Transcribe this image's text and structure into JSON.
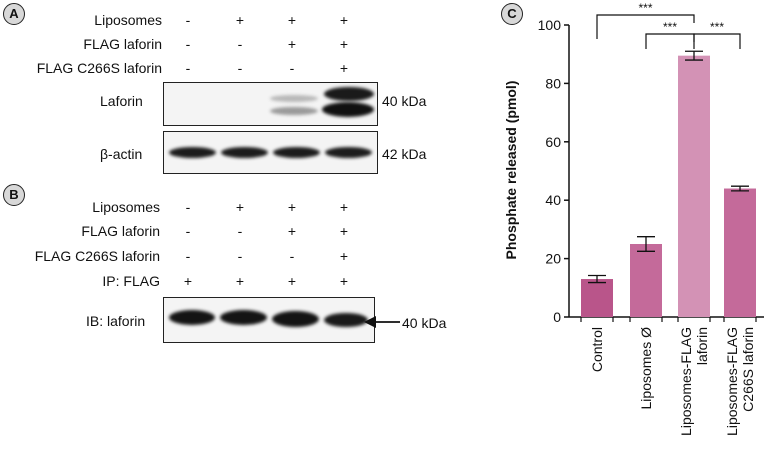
{
  "panel_a": {
    "letter": "A",
    "rows": [
      {
        "label": "Liposomes",
        "signs": [
          "-",
          "+",
          "+",
          "+"
        ]
      },
      {
        "label": "FLAG laforin",
        "signs": [
          "-",
          "-",
          "+",
          "+"
        ]
      },
      {
        "label": "FLAG C266S laforin",
        "signs": [
          "-",
          "-",
          "-",
          "+"
        ]
      }
    ],
    "blots": [
      {
        "label": "Laforin",
        "marker": "40 kDa"
      },
      {
        "label": "β-actin",
        "marker": "42 kDa"
      }
    ]
  },
  "panel_b": {
    "letter": "B",
    "rows": [
      {
        "label": "Liposomes",
        "signs": [
          "-",
          "+",
          "+",
          "+"
        ]
      },
      {
        "label": "FLAG laforin",
        "signs": [
          "-",
          "-",
          "+",
          "+"
        ]
      },
      {
        "label": "FLAG C266S laforin",
        "signs": [
          "-",
          "-",
          "-",
          "+"
        ]
      },
      {
        "label": "IP: FLAG",
        "signs": [
          "+",
          "+",
          "+",
          "+"
        ]
      }
    ],
    "blots": [
      {
        "label": "IB: laforin",
        "marker": "40 kDa"
      }
    ]
  },
  "panel_c": {
    "letter": "C",
    "significance": [
      "***",
      "***",
      "***"
    ]
  },
  "chart_data": {
    "type": "bar",
    "categories": [
      "Control",
      "Liposomes Ø",
      "Liposomes-FLAG laforin",
      "Liposomes-FLAG C266S laforin"
    ],
    "category_lines": [
      [
        "Control"
      ],
      [
        "Liposomes Ø"
      ],
      [
        "Liposomes-FLAG",
        "laforin"
      ],
      [
        "Liposomes-FLAG",
        "C266S laforin"
      ]
    ],
    "values": [
      13,
      25,
      89.5,
      44
    ],
    "errors": [
      1.2,
      2.5,
      1.5,
      0.8
    ],
    "colors": [
      "#b9558a",
      "#c46a9a",
      "#d392b5",
      "#c46a9a"
    ],
    "ylabel": "Phosphate released (pmol)",
    "xlabel": "",
    "title": "",
    "ylim": [
      0,
      100
    ],
    "yticks": [
      0,
      20,
      40,
      60,
      80,
      100
    ],
    "grid": false,
    "significance": [
      {
        "from": 0,
        "to": 2,
        "label": "***"
      },
      {
        "from": 1,
        "to": 2,
        "label": "***"
      },
      {
        "from": 2,
        "to": 3,
        "label": "***"
      }
    ]
  }
}
